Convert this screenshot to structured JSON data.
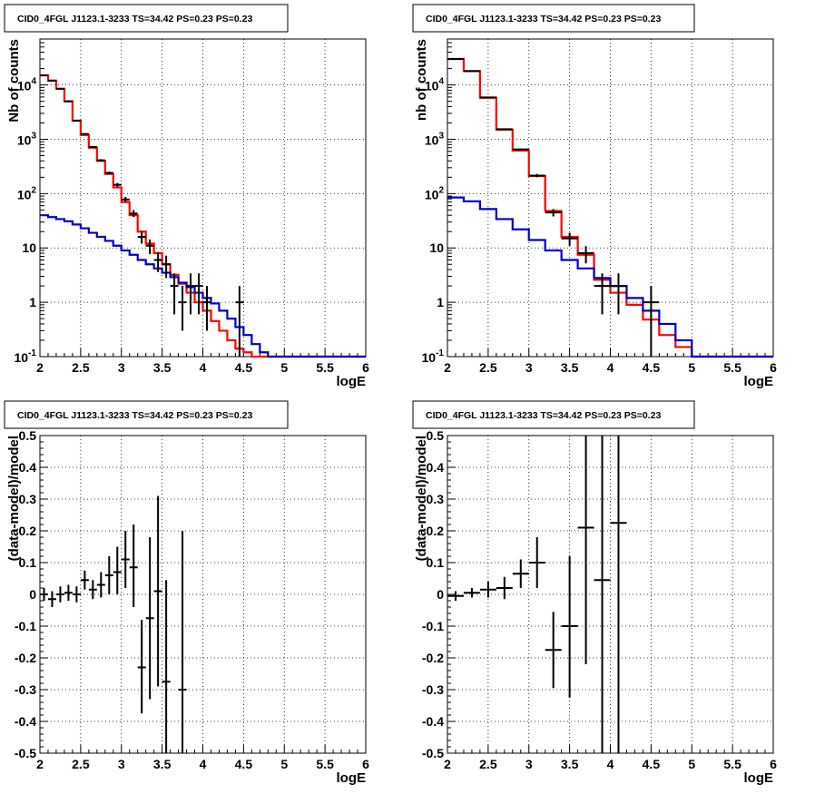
{
  "chart_data": [
    {
      "type": "line",
      "title": "CID0_4FGL J1123.1-3233 TS=34.42 PS=0.23 PS=0.23",
      "xlabel": "logE",
      "ylabel": "Nb of counts",
      "xlim": [
        2,
        6
      ],
      "ylim": [
        0.1,
        70000
      ],
      "yscale": "log",
      "grid": true,
      "xticks": [
        "2",
        "2.5",
        "3",
        "3.5",
        "4",
        "4.5",
        "5",
        "5.5",
        "6"
      ],
      "yticks": [
        {
          "v": 0.1,
          "base": "10",
          "exp": "-1"
        },
        {
          "v": 1,
          "label": "1"
        },
        {
          "v": 10,
          "label": "10"
        },
        {
          "v": 100,
          "base": "10",
          "exp": "2"
        },
        {
          "v": 1000,
          "base": "10",
          "exp": "3"
        },
        {
          "v": 10000,
          "base": "10",
          "exp": "4"
        }
      ],
      "bin_edges": [
        2,
        2.1,
        2.2,
        2.3,
        2.4,
        2.5,
        2.6,
        2.7,
        2.8,
        2.9,
        3,
        3.1,
        3.2,
        3.3,
        3.4,
        3.5,
        3.6,
        3.7,
        3.8,
        3.9,
        4,
        4.1,
        4.2,
        4.3,
        4.4,
        4.5,
        4.6,
        4.7,
        4.8,
        4.9,
        5,
        5.1,
        5.2,
        5.3,
        5.4,
        5.5,
        5.6,
        5.7,
        5.8,
        5.9,
        6
      ],
      "series": [
        {
          "color": "#ff0000",
          "style": "step",
          "values": [
            15000,
            12000,
            8500,
            5000,
            2200,
            1200,
            700,
            400,
            230,
            130,
            70,
            40,
            20,
            12,
            8,
            5,
            3.2,
            2.2,
            1.5,
            1.0,
            0.7,
            0.45,
            0.3,
            0.2,
            0.14,
            0.12,
            0.1,
            0.1,
            0.1,
            0.1,
            0.1,
            0.1,
            0.1,
            0.1,
            0.1,
            0.1,
            0.1,
            0.1,
            0.1,
            0.1
          ]
        },
        {
          "color": "#0000cc",
          "style": "step",
          "values": [
            40,
            37,
            34,
            31,
            27,
            23,
            19,
            16,
            13.5,
            11,
            9,
            7.5,
            6,
            5,
            4.2,
            3.5,
            2.9,
            2.3,
            1.9,
            1.5,
            1.2,
            0.95,
            0.7,
            0.5,
            0.35,
            0.25,
            0.17,
            0.12,
            0.1,
            0.1,
            0.1,
            0.1,
            0.1,
            0.1,
            0.1,
            0.1,
            0.1,
            0.1,
            0.1,
            0.1
          ]
        },
        {
          "color": "#000000",
          "style": "errorbar",
          "points": [
            {
              "x": 2.05,
              "y": 15000,
              "lo": 14850,
              "hi": 15150
            },
            {
              "x": 2.15,
              "y": 12000,
              "lo": 11850,
              "hi": 12150
            },
            {
              "x": 2.25,
              "y": 8500,
              "lo": 8400,
              "hi": 8600
            },
            {
              "x": 2.35,
              "y": 5000,
              "lo": 4930,
              "hi": 5070
            },
            {
              "x": 2.45,
              "y": 2200,
              "lo": 2150,
              "hi": 2250
            },
            {
              "x": 2.55,
              "y": 1250,
              "lo": 1210,
              "hi": 1290
            },
            {
              "x": 2.65,
              "y": 720,
              "lo": 690,
              "hi": 750
            },
            {
              "x": 2.75,
              "y": 410,
              "lo": 390,
              "hi": 430
            },
            {
              "x": 2.85,
              "y": 240,
              "lo": 225,
              "hi": 255
            },
            {
              "x": 2.95,
              "y": 145,
              "lo": 133,
              "hi": 157
            },
            {
              "x": 3.05,
              "y": 78,
              "lo": 70,
              "hi": 87
            },
            {
              "x": 3.15,
              "y": 43,
              "lo": 37,
              "hi": 50
            },
            {
              "x": 3.25,
              "y": 16,
              "lo": 12,
              "hi": 20
            },
            {
              "x": 3.35,
              "y": 11,
              "lo": 7.7,
              "hi": 14.3
            },
            {
              "x": 3.45,
              "y": 6,
              "lo": 3.6,
              "hi": 8.4
            },
            {
              "x": 3.55,
              "y": 5,
              "lo": 2.8,
              "hi": 7.2
            },
            {
              "x": 3.65,
              "y": 2,
              "lo": 0.6,
              "hi": 3.4
            },
            {
              "x": 3.75,
              "y": 1,
              "lo": 0.3,
              "hi": 2
            },
            {
              "x": 3.85,
              "y": 2,
              "lo": 0.6,
              "hi": 3.4
            },
            {
              "x": 3.95,
              "y": 2,
              "lo": 0.6,
              "hi": 3.4
            },
            {
              "x": 4.05,
              "y": 1,
              "lo": 0.3,
              "hi": 2
            },
            {
              "x": 4.45,
              "y": 1,
              "lo": 0.1,
              "hi": 2
            }
          ]
        }
      ]
    },
    {
      "type": "line",
      "title": "CID0_4FGL J1123.1-3233 TS=34.42 PS=0.23 PS=0.23",
      "xlabel": "logE",
      "ylabel": "nb of counts",
      "xlim": [
        2,
        6
      ],
      "ylim": [
        0.1,
        70000
      ],
      "yscale": "log",
      "grid": true,
      "xticks": [
        "2",
        "2.5",
        "3",
        "3.5",
        "4",
        "4.5",
        "5",
        "5.5",
        "6"
      ],
      "yticks": [
        {
          "v": 0.1,
          "base": "10",
          "exp": "-1"
        },
        {
          "v": 1,
          "label": "1"
        },
        {
          "v": 10,
          "label": "10"
        },
        {
          "v": 100,
          "base": "10",
          "exp": "2"
        },
        {
          "v": 1000,
          "base": "10",
          "exp": "3"
        },
        {
          "v": 10000,
          "base": "10",
          "exp": "4"
        }
      ],
      "bin_edges": [
        2,
        2.2,
        2.4,
        2.6,
        2.8,
        3,
        3.2,
        3.4,
        3.6,
        3.8,
        4,
        4.2,
        4.4,
        4.6,
        4.8,
        5,
        5.2,
        5.4,
        5.6,
        5.8,
        6
      ],
      "series": [
        {
          "color": "#ff0000",
          "style": "step",
          "values": [
            30000,
            18000,
            5800,
            1500,
            620,
            210,
            48,
            16,
            7.5,
            2.6,
            1.5,
            0.9,
            0.48,
            0.25,
            0.15,
            0.1,
            0.1,
            0.1,
            0.1,
            0.1
          ]
        },
        {
          "color": "#0000cc",
          "style": "step",
          "values": [
            85,
            72,
            52,
            34,
            22,
            14,
            9,
            6,
            4.2,
            2.8,
            2.0,
            1.2,
            0.7,
            0.4,
            0.2,
            0.1,
            0.1,
            0.1,
            0.1,
            0.1
          ]
        },
        {
          "color": "#000000",
          "style": "errorbar",
          "points": [
            {
              "x": 2.1,
              "y": 30000,
              "lo": 29800,
              "hi": 30200
            },
            {
              "x": 2.3,
              "y": 18000,
              "lo": 17850,
              "hi": 18150
            },
            {
              "x": 2.5,
              "y": 5900,
              "lo": 5820,
              "hi": 5980
            },
            {
              "x": 2.7,
              "y": 1530,
              "lo": 1490,
              "hi": 1570
            },
            {
              "x": 2.9,
              "y": 650,
              "lo": 625,
              "hi": 675
            },
            {
              "x": 3.1,
              "y": 215,
              "lo": 200,
              "hi": 230
            },
            {
              "x": 3.3,
              "y": 45,
              "lo": 38,
              "hi": 52
            },
            {
              "x": 3.5,
              "y": 15,
              "lo": 11,
              "hi": 19
            },
            {
              "x": 3.7,
              "y": 8,
              "lo": 5.2,
              "hi": 10.8
            },
            {
              "x": 3.9,
              "y": 2,
              "lo": 0.6,
              "hi": 3.4
            },
            {
              "x": 4.1,
              "y": 2,
              "lo": 0.6,
              "hi": 3.4
            },
            {
              "x": 4.5,
              "y": 1,
              "lo": 0.1,
              "hi": 2
            }
          ]
        }
      ]
    },
    {
      "type": "scatter",
      "title": "CID0_4FGL J1123.1-3233 TS=34.42 PS=0.23 PS=0.23",
      "xlabel": "logE",
      "ylabel": "(data-model)/model",
      "xlim": [
        2,
        6
      ],
      "ylim": [
        -0.5,
        0.5
      ],
      "grid": true,
      "xticks": [
        "2",
        "2.5",
        "3",
        "3.5",
        "4",
        "4.5",
        "5",
        "5.5",
        "6"
      ],
      "yticks": [
        "-0.5",
        "-0.4",
        "-0.3",
        "-0.2",
        "-0.1",
        "0",
        "0.1",
        "0.2",
        "0.3",
        "0.4",
        "0.5"
      ],
      "series": [
        {
          "color": "#000000",
          "style": "errorbar",
          "xhalf": 0.05,
          "points": [
            {
              "x": 2.05,
              "y": 0.0,
              "lo": -0.02,
              "hi": 0.02
            },
            {
              "x": 2.15,
              "y": -0.015,
              "lo": -0.04,
              "hi": 0.01
            },
            {
              "x": 2.25,
              "y": 0.0,
              "lo": -0.025,
              "hi": 0.025
            },
            {
              "x": 2.35,
              "y": 0.005,
              "lo": -0.02,
              "hi": 0.03
            },
            {
              "x": 2.45,
              "y": 0.0,
              "lo": -0.025,
              "hi": 0.025
            },
            {
              "x": 2.55,
              "y": 0.045,
              "lo": 0.015,
              "hi": 0.075
            },
            {
              "x": 2.65,
              "y": 0.015,
              "lo": -0.015,
              "hi": 0.045
            },
            {
              "x": 2.75,
              "y": 0.03,
              "lo": -0.01,
              "hi": 0.07
            },
            {
              "x": 2.85,
              "y": 0.06,
              "lo": 0.0,
              "hi": 0.12
            },
            {
              "x": 2.95,
              "y": 0.07,
              "lo": 0.0,
              "hi": 0.15
            },
            {
              "x": 3.05,
              "y": 0.11,
              "lo": 0.02,
              "hi": 0.2
            },
            {
              "x": 3.15,
              "y": 0.085,
              "lo": -0.04,
              "hi": 0.22
            },
            {
              "x": 3.25,
              "y": -0.23,
              "lo": -0.375,
              "hi": -0.08
            },
            {
              "x": 3.35,
              "y": -0.075,
              "lo": -0.33,
              "hi": 0.18
            },
            {
              "x": 3.45,
              "y": 0.01,
              "lo": -0.29,
              "hi": 0.31
            },
            {
              "x": 3.55,
              "y": -0.275,
              "lo": -0.5,
              "hi": 0.045
            },
            {
              "x": 3.75,
              "y": -0.3,
              "lo": -0.5,
              "hi": 0.2
            }
          ]
        }
      ]
    },
    {
      "type": "scatter",
      "title": "CID0_4FGL J1123.1-3233 TS=34.42 PS=0.23 PS=0.23",
      "xlabel": "logE",
      "ylabel": "(data-model)/model",
      "xlim": [
        2,
        6
      ],
      "ylim": [
        -0.5,
        0.5
      ],
      "grid": true,
      "xticks": [
        "2",
        "2.5",
        "3",
        "3.5",
        "4",
        "4.5",
        "5",
        "5.5",
        "6"
      ],
      "yticks": [
        "-0.5",
        "-0.4",
        "-0.3",
        "-0.2",
        "-0.1",
        "0",
        "0.1",
        "0.2",
        "0.3",
        "0.4",
        "0.5"
      ],
      "series": [
        {
          "color": "#000000",
          "style": "errorbar",
          "xhalf": 0.1,
          "points": [
            {
              "x": 2.1,
              "y": -0.005,
              "lo": -0.02,
              "hi": 0.01
            },
            {
              "x": 2.3,
              "y": 0.005,
              "lo": -0.01,
              "hi": 0.02
            },
            {
              "x": 2.5,
              "y": 0.015,
              "lo": -0.01,
              "hi": 0.04
            },
            {
              "x": 2.7,
              "y": 0.02,
              "lo": -0.015,
              "hi": 0.055
            },
            {
              "x": 2.9,
              "y": 0.065,
              "lo": 0.02,
              "hi": 0.11
            },
            {
              "x": 3.1,
              "y": 0.1,
              "lo": 0.02,
              "hi": 0.18
            },
            {
              "x": 3.3,
              "y": -0.175,
              "lo": -0.295,
              "hi": -0.055
            },
            {
              "x": 3.5,
              "y": -0.1,
              "lo": -0.325,
              "hi": 0.12
            },
            {
              "x": 3.7,
              "y": 0.21,
              "lo": -0.22,
              "hi": 0.5
            },
            {
              "x": 3.9,
              "y": 0.045,
              "lo": -0.5,
              "hi": 0.5
            },
            {
              "x": 4.1,
              "y": 0.225,
              "lo": -0.5,
              "hi": 0.5
            }
          ]
        }
      ]
    }
  ]
}
